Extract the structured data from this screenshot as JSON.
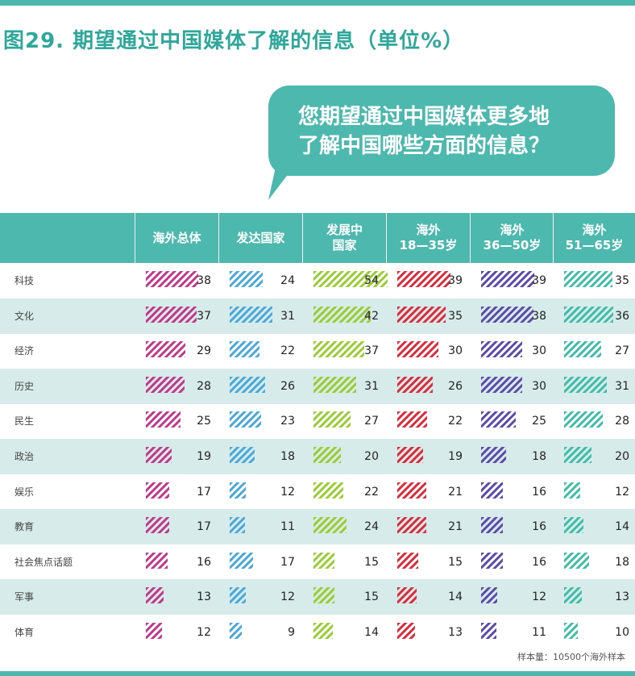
{
  "title": "图29. 期望通过中国媒体了解的信息（单位%）",
  "question": {
    "line1": "您期望通过中国媒体更多地",
    "line2": "了解中国哪些方面的信息？"
  },
  "footnote": "样本量：10500个海外样本",
  "colors": {
    "accent": "#4db8ad",
    "title": "#2fa79b",
    "series": [
      "#c0388a",
      "#4aa8d8",
      "#99cc33",
      "#d92b3c",
      "#5b4aa8",
      "#3fbca8"
    ]
  },
  "chart_data": {
    "type": "bar",
    "categories": [
      "科技",
      "文化",
      "经济",
      "历史",
      "民生",
      "政治",
      "娱乐",
      "教育",
      "社会焦点话题",
      "军事",
      "体育"
    ],
    "series": [
      {
        "name": "海外总体",
        "name_lines": [
          "海外总体"
        ],
        "values": [
          38,
          37,
          29,
          28,
          25,
          19,
          17,
          17,
          16,
          13,
          12
        ]
      },
      {
        "name": "发达国家",
        "name_lines": [
          "发达国家"
        ],
        "values": [
          24,
          31,
          22,
          26,
          23,
          18,
          12,
          11,
          17,
          12,
          9
        ]
      },
      {
        "name": "发展中国家",
        "name_lines": [
          "发展中",
          "国家"
        ],
        "values": [
          54,
          42,
          37,
          31,
          27,
          20,
          22,
          24,
          15,
          15,
          14
        ]
      },
      {
        "name": "海外18—35岁",
        "name_lines": [
          "海外",
          "18—35岁"
        ],
        "values": [
          39,
          35,
          30,
          26,
          22,
          19,
          21,
          21,
          15,
          14,
          13
        ]
      },
      {
        "name": "海外36—50岁",
        "name_lines": [
          "海外",
          "36—50岁"
        ],
        "values": [
          39,
          38,
          30,
          30,
          25,
          18,
          16,
          16,
          16,
          12,
          11
        ]
      },
      {
        "name": "海外51—65岁",
        "name_lines": [
          "海外",
          "51—65岁"
        ],
        "values": [
          35,
          36,
          27,
          31,
          28,
          20,
          12,
          14,
          18,
          13,
          10
        ]
      }
    ],
    "unit": "%"
  }
}
